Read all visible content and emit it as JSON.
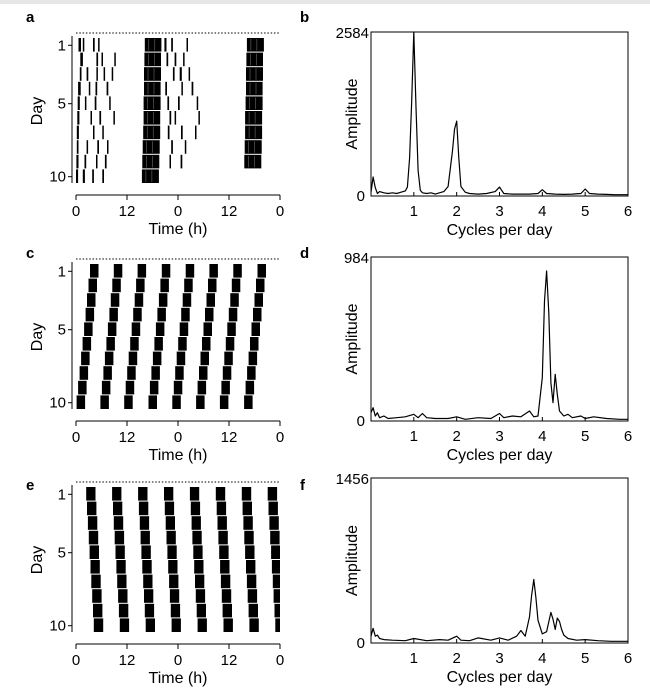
{
  "panels": {
    "a": {
      "label": "a"
    },
    "b": {
      "label": "b"
    },
    "c": {
      "label": "c"
    },
    "d": {
      "label": "d"
    },
    "e": {
      "label": "e"
    },
    "f": {
      "label": "f"
    }
  },
  "chart_data": [
    {
      "id": "a",
      "type": "heatmap",
      "subtype": "double-plotted actogram",
      "xlabel": "Time (h)",
      "ylabel": "Day",
      "x_ticks": [
        "0",
        "12",
        "0",
        "12",
        "0"
      ],
      "y_ticks": [
        "1",
        "5",
        "10"
      ],
      "days": 10,
      "hours": 48,
      "activity_bouts_h": [
        [
          [
            0.6,
            1.2
          ],
          [
            1.6,
            1.9
          ],
          [
            4.0,
            4.4
          ],
          [
            5.2,
            5.5
          ],
          [
            16.2,
            20.1
          ],
          [
            20.8,
            21.3
          ],
          [
            22.4,
            22.8
          ],
          [
            26.0,
            26.3
          ],
          [
            40.2,
            44.2
          ]
        ],
        [
          [
            1.0,
            1.6
          ],
          [
            4.8,
            5.2
          ],
          [
            6.0,
            6.3
          ],
          [
            9.0,
            9.2
          ],
          [
            16.1,
            20.0
          ],
          [
            21.3,
            21.7
          ],
          [
            23.2,
            23.6
          ],
          [
            25.2,
            25.5
          ],
          [
            40.1,
            44.0
          ]
        ],
        [
          [
            0.9,
            1.3
          ],
          [
            2.5,
            2.9
          ],
          [
            4.8,
            5.1
          ],
          [
            6.5,
            6.8
          ],
          [
            8.4,
            8.6
          ],
          [
            16.0,
            20.0
          ],
          [
            22.8,
            23.2
          ],
          [
            24.4,
            24.9
          ],
          [
            26.5,
            26.8
          ],
          [
            40.0,
            44.0
          ]
        ],
        [
          [
            0.5,
            1.1
          ],
          [
            3.0,
            3.3
          ],
          [
            4.6,
            5.0
          ],
          [
            7.2,
            7.6
          ],
          [
            16.0,
            19.9
          ],
          [
            21.0,
            21.4
          ],
          [
            24.8,
            25.1
          ],
          [
            27.2,
            27.6
          ],
          [
            40.0,
            43.9
          ]
        ],
        [
          [
            0.4,
            0.9
          ],
          [
            2.1,
            2.4
          ],
          [
            4.4,
            4.8
          ],
          [
            7.8,
            8.0
          ],
          [
            15.9,
            19.9
          ],
          [
            21.5,
            21.9
          ],
          [
            24.0,
            24.4
          ],
          [
            28.4,
            28.7
          ],
          [
            39.9,
            43.9
          ]
        ],
        [
          [
            0.3,
            0.8
          ],
          [
            3.4,
            3.7
          ],
          [
            5.5,
            5.9
          ],
          [
            8.8,
            9.0
          ],
          [
            15.9,
            19.8
          ],
          [
            22.0,
            22.4
          ],
          [
            23.2,
            23.5
          ],
          [
            28.8,
            29.0
          ],
          [
            39.8,
            43.8
          ]
        ],
        [
          [
            0.2,
            0.7
          ],
          [
            4.0,
            4.3
          ],
          [
            6.2,
            6.5
          ],
          [
            15.8,
            19.8
          ],
          [
            21.6,
            22.0
          ],
          [
            24.7,
            25.1
          ],
          [
            28.0,
            28.2
          ],
          [
            39.8,
            43.8
          ]
        ],
        [
          [
            0.2,
            0.6
          ],
          [
            2.5,
            2.8
          ],
          [
            5.0,
            5.4
          ],
          [
            7.3,
            7.6
          ],
          [
            15.7,
            19.7
          ],
          [
            22.4,
            22.8
          ],
          [
            25.6,
            25.9
          ],
          [
            39.7,
            43.7
          ]
        ],
        [
          [
            0.1,
            0.6
          ],
          [
            2.0,
            2.4
          ],
          [
            4.7,
            5.0
          ],
          [
            6.8,
            7.2
          ],
          [
            15.6,
            19.6
          ],
          [
            22.0,
            22.3
          ],
          [
            24.6,
            25.0
          ],
          [
            39.6,
            43.6
          ]
        ],
        [
          [
            0.0,
            0.5
          ],
          [
            1.6,
            2.1
          ],
          [
            3.8,
            4.2
          ],
          [
            6.2,
            6.6
          ],
          [
            15.5,
            19.5
          ]
        ]
      ]
    },
    {
      "id": "b",
      "type": "line",
      "xlabel": "Cycles per day",
      "ylabel": "Amplitude",
      "x_ticks": [
        "1",
        "2",
        "3",
        "4",
        "5",
        "6"
      ],
      "y_ticks": [
        "0",
        "2584"
      ],
      "xlim": [
        0,
        6
      ],
      "ylim": [
        0,
        2584
      ],
      "x": [
        0,
        0.05,
        0.1,
        0.15,
        0.2,
        0.3,
        0.4,
        0.5,
        0.6,
        0.7,
        0.8,
        0.85,
        0.9,
        0.95,
        1.0,
        1.05,
        1.1,
        1.15,
        1.2,
        1.3,
        1.4,
        1.5,
        1.6,
        1.7,
        1.8,
        1.9,
        1.95,
        2.0,
        2.05,
        2.1,
        2.2,
        2.3,
        2.5,
        2.7,
        2.9,
        3.0,
        3.1,
        3.3,
        3.5,
        3.7,
        3.9,
        4.0,
        4.1,
        4.3,
        4.5,
        4.7,
        4.9,
        5.0,
        5.1,
        5.3,
        5.5,
        5.7,
        5.9,
        6.0
      ],
      "y": [
        60,
        300,
        130,
        40,
        70,
        50,
        40,
        50,
        40,
        60,
        80,
        140,
        600,
        1500,
        2584,
        1400,
        400,
        90,
        50,
        40,
        50,
        30,
        50,
        70,
        150,
        700,
        1050,
        1180,
        600,
        150,
        60,
        40,
        30,
        40,
        70,
        140,
        40,
        30,
        30,
        30,
        40,
        100,
        40,
        30,
        25,
        30,
        40,
        110,
        40,
        30,
        25,
        20,
        20,
        20
      ]
    },
    {
      "id": "c",
      "type": "heatmap",
      "subtype": "double-plotted actogram",
      "xlabel": "Time (h)",
      "ylabel": "Day",
      "x_ticks": [
        "0",
        "12",
        "0",
        "12",
        "0"
      ],
      "y_ticks": [
        "1",
        "5",
        "10"
      ],
      "days": 10,
      "hours": 48,
      "bout_phase_h": [
        3.3,
        8.9,
        14.5,
        20.2,
        25.8,
        31.4,
        37.0,
        42.7
      ],
      "bout_duration_h": 2.0,
      "phase_shift_per_day_h": -0.35
    },
    {
      "id": "d",
      "type": "line",
      "xlabel": "Cycles per day",
      "ylabel": "Amplitude",
      "x_ticks": [
        "1",
        "2",
        "3",
        "4",
        "5",
        "6"
      ],
      "y_ticks": [
        "0",
        "984"
      ],
      "xlim": [
        0,
        6
      ],
      "ylim": [
        0,
        984
      ],
      "x": [
        0,
        0.05,
        0.1,
        0.15,
        0.2,
        0.3,
        0.4,
        0.6,
        0.8,
        1.0,
        1.1,
        1.2,
        1.3,
        1.5,
        1.8,
        2.0,
        2.2,
        2.5,
        2.8,
        3.0,
        3.1,
        3.3,
        3.5,
        3.7,
        3.8,
        3.9,
        4.0,
        4.05,
        4.1,
        4.15,
        4.2,
        4.25,
        4.3,
        4.35,
        4.4,
        4.5,
        4.6,
        4.7,
        4.9,
        5.0,
        5.2,
        5.5,
        5.8,
        6.0
      ],
      "y": [
        50,
        80,
        30,
        50,
        20,
        30,
        15,
        20,
        25,
        40,
        20,
        45,
        20,
        15,
        15,
        25,
        10,
        20,
        15,
        45,
        20,
        30,
        25,
        60,
        25,
        30,
        260,
        720,
        900,
        650,
        230,
        110,
        280,
        160,
        60,
        30,
        40,
        20,
        30,
        15,
        25,
        15,
        10,
        10
      ]
    },
    {
      "id": "e",
      "type": "heatmap",
      "subtype": "double-plotted actogram",
      "xlabel": "Time (h)",
      "ylabel": "Day",
      "x_ticks": [
        "0",
        "12",
        "0",
        "12",
        "0"
      ],
      "y_ticks": [
        "1",
        "5",
        "10"
      ],
      "days": 10,
      "hours": 48,
      "bout_phase_h": [
        2.4,
        8.5,
        14.6,
        20.7,
        26.8,
        32.9,
        39.0,
        45.1
      ],
      "bout_duration_h": 2.2,
      "phase_shift_per_day_h": 0.2
    },
    {
      "id": "f",
      "type": "line",
      "xlabel": "Cycles per day",
      "ylabel": "Amplitude",
      "x_ticks": [
        "1",
        "2",
        "3",
        "4",
        "5",
        "6"
      ],
      "y_ticks": [
        "0",
        "1456"
      ],
      "xlim": [
        0,
        6
      ],
      "ylim": [
        0,
        1456
      ],
      "x": [
        0,
        0.05,
        0.1,
        0.15,
        0.2,
        0.3,
        0.5,
        0.8,
        1.0,
        1.3,
        1.6,
        1.8,
        2.0,
        2.1,
        2.3,
        2.5,
        2.8,
        3.0,
        3.2,
        3.4,
        3.5,
        3.6,
        3.7,
        3.75,
        3.8,
        3.85,
        3.9,
        4.0,
        4.1,
        4.2,
        4.25,
        4.3,
        4.35,
        4.4,
        4.45,
        4.5,
        4.6,
        4.8,
        5.0,
        5.3,
        5.6,
        6.0
      ],
      "y": [
        60,
        130,
        60,
        70,
        40,
        30,
        25,
        20,
        40,
        20,
        30,
        25,
        60,
        25,
        20,
        45,
        25,
        45,
        25,
        60,
        110,
        60,
        230,
        420,
        560,
        400,
        200,
        80,
        100,
        270,
        210,
        120,
        220,
        190,
        120,
        70,
        40,
        25,
        30,
        20,
        15,
        15
      ]
    }
  ]
}
